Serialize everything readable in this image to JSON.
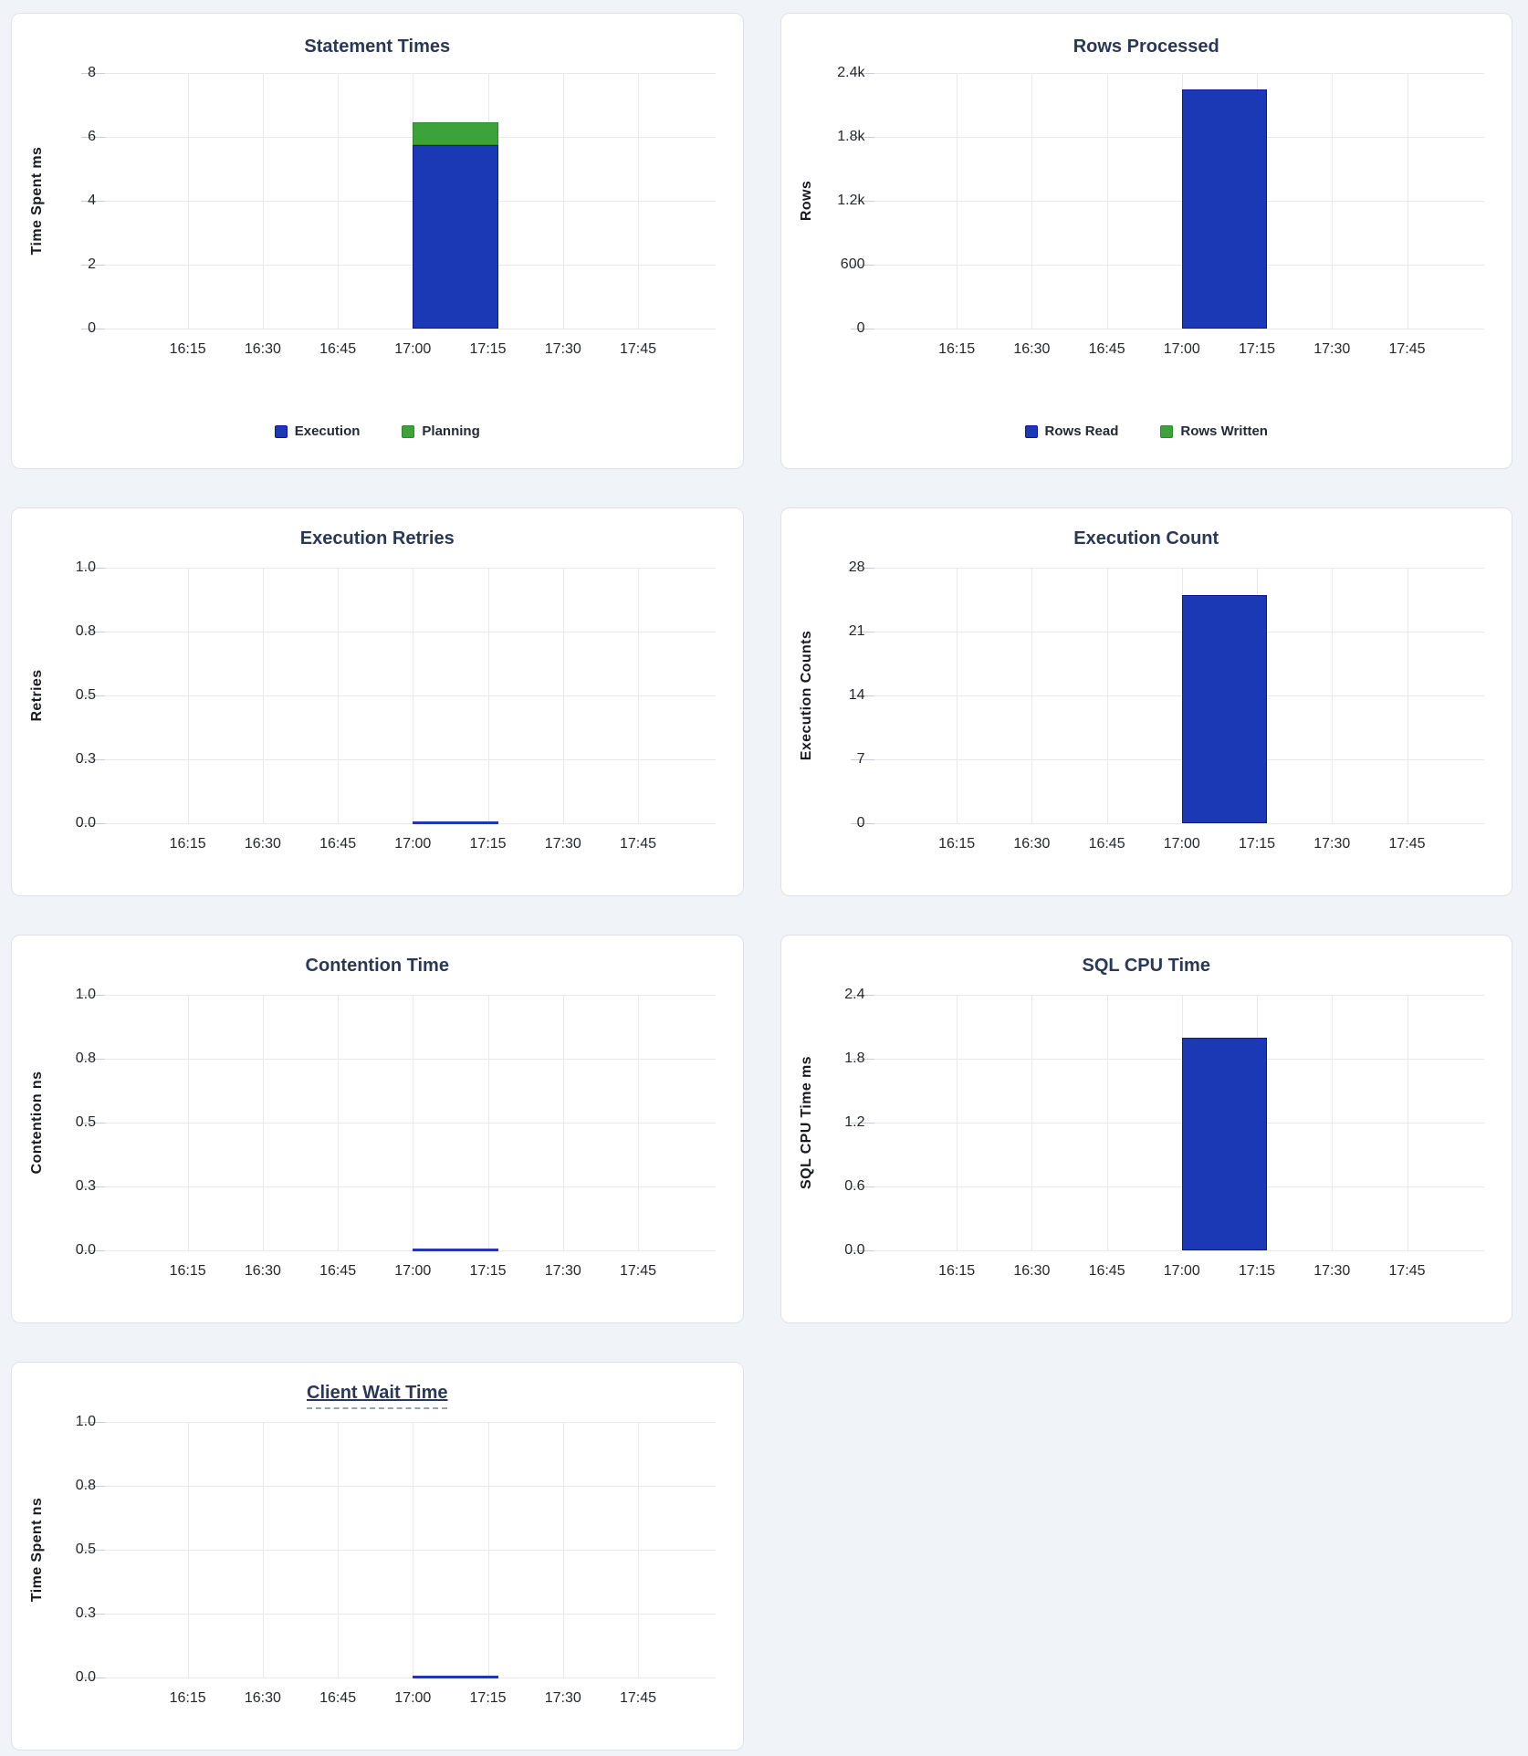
{
  "page": {
    "background": "#F0F4F8"
  },
  "colors": {
    "blue_fill": "#1C39B5",
    "blue_stroke": "#1213A0",
    "green_fill": "#3EA23A",
    "green_stroke": "#2C8929",
    "flat_line": "#2335B2",
    "title_text": "#2A3858",
    "tick_text": "#24262B",
    "grid_line": "#E9E9E9",
    "panel_border": "#DEE2E8"
  },
  "x_axis": {
    "tick_labels": [
      "16:15",
      "16:30",
      "16:45",
      "17:00",
      "17:15",
      "17:30",
      "17:45"
    ],
    "bar_window": {
      "start": "17:00",
      "end": "17:17"
    }
  },
  "chart_data": [
    {
      "type": "bar",
      "title": "Statement Times",
      "ylabel": "Time Spent ms",
      "ylim": [
        0,
        8
      ],
      "y_tick_values": [
        0,
        2,
        4,
        6,
        8
      ],
      "y_tick_labels": [
        "0",
        "2",
        "4",
        "6",
        "8"
      ],
      "series": [
        {
          "name": "Execution",
          "color_key": "blue",
          "value": 5.75
        },
        {
          "name": "Planning",
          "color_key": "green",
          "value": 0.7
        }
      ],
      "legend_visible": true,
      "title_underline": false
    },
    {
      "type": "bar",
      "title": "Rows Processed",
      "ylabel": "Rows",
      "ylim": [
        0,
        2400
      ],
      "y_tick_values": [
        0,
        600,
        1200,
        1800,
        2400
      ],
      "y_tick_labels": [
        "0",
        "600",
        "1.2k",
        "1.8k",
        "2.4k"
      ],
      "series": [
        {
          "name": "Rows Read",
          "color_key": "blue",
          "value": 2250
        },
        {
          "name": "Rows Written",
          "color_key": "green",
          "value": 0
        }
      ],
      "legend_visible": true,
      "title_underline": false
    },
    {
      "type": "bar",
      "title": "Execution Retries",
      "ylabel": "Retries",
      "ylim": [
        0,
        1
      ],
      "y_tick_values": [
        0,
        0.25,
        0.5,
        0.75,
        1
      ],
      "y_tick_labels": [
        "0.0",
        "0.3",
        "0.5",
        "0.8",
        "1.0"
      ],
      "series": [
        {
          "name": "Retries",
          "color_key": "blue",
          "value": 0
        }
      ],
      "legend_visible": false,
      "title_underline": false
    },
    {
      "type": "bar",
      "title": "Execution Count",
      "ylabel": "Execution Counts",
      "ylim": [
        0,
        28
      ],
      "y_tick_values": [
        0,
        7,
        14,
        21,
        28
      ],
      "y_tick_labels": [
        "0",
        "7",
        "14",
        "21",
        "28"
      ],
      "series": [
        {
          "name": "Execution Count",
          "color_key": "blue",
          "value": 25
        }
      ],
      "legend_visible": false,
      "title_underline": false
    },
    {
      "type": "bar",
      "title": "Contention Time",
      "ylabel": "Contention ns",
      "ylim": [
        0,
        1
      ],
      "y_tick_values": [
        0,
        0.25,
        0.5,
        0.75,
        1
      ],
      "y_tick_labels": [
        "0.0",
        "0.3",
        "0.5",
        "0.8",
        "1.0"
      ],
      "series": [
        {
          "name": "Contention",
          "color_key": "blue",
          "value": 0
        }
      ],
      "legend_visible": false,
      "title_underline": false
    },
    {
      "type": "bar",
      "title": "SQL CPU Time",
      "ylabel": "SQL CPU Time ms",
      "ylim": [
        0,
        2.4
      ],
      "y_tick_values": [
        0,
        0.6,
        1.2,
        1.8,
        2.4
      ],
      "y_tick_labels": [
        "0.0",
        "0.6",
        "1.2",
        "1.8",
        "2.4"
      ],
      "series": [
        {
          "name": "SQL CPU Time",
          "color_key": "blue",
          "value": 2.0
        }
      ],
      "legend_visible": false,
      "title_underline": false
    },
    {
      "type": "bar",
      "title": "Client Wait Time",
      "ylabel": "Time Spent ns",
      "ylim": [
        0,
        1
      ],
      "y_tick_values": [
        0,
        0.25,
        0.5,
        0.75,
        1
      ],
      "y_tick_labels": [
        "0.0",
        "0.3",
        "0.5",
        "0.8",
        "1.0"
      ],
      "series": [
        {
          "name": "Client Wait Time",
          "color_key": "blue",
          "value": 0
        }
      ],
      "legend_visible": false,
      "title_underline": true
    }
  ]
}
